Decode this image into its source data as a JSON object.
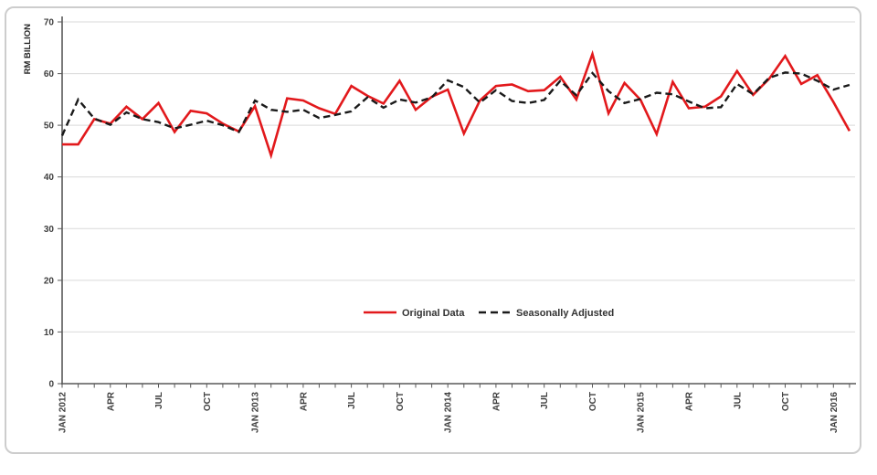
{
  "panel": {
    "background": "#ffffff",
    "border_color": "#cdcdcd"
  },
  "chart_data": {
    "type": "line",
    "title": "",
    "xlabel": "",
    "ylabel": "RM BILLION",
    "ylim": [
      0,
      70
    ],
    "yticks": [
      0,
      10,
      20,
      30,
      40,
      50,
      60,
      70
    ],
    "grid": "horizontal",
    "grid_color": "#d9d9d9",
    "axis_color": "#595959",
    "tick_label_color": "#3f3f3f",
    "x_tick_label_every": 3,
    "x_tick_labels": [
      "JAN 2012",
      "APR",
      "JUL",
      "OCT",
      "JAN 2013",
      "APR",
      "JUL",
      "OCT",
      "JAN 2014",
      "APR",
      "JUL",
      "OCT",
      "JAN 2015",
      "APR",
      "JUL",
      "OCT",
      "JAN 2016"
    ],
    "months": [
      "Jan 2012",
      "Feb 2012",
      "Mar 2012",
      "Apr 2012",
      "May 2012",
      "Jun 2012",
      "Jul 2012",
      "Aug 2012",
      "Sep 2012",
      "Oct 2012",
      "Nov 2012",
      "Dec 2012",
      "Jan 2013",
      "Feb 2013",
      "Mar 2013",
      "Apr 2013",
      "May 2013",
      "Jun 2013",
      "Jul 2013",
      "Aug 2013",
      "Sep 2013",
      "Oct 2013",
      "Nov 2013",
      "Dec 2013",
      "Jan 2014",
      "Feb 2014",
      "Mar 2014",
      "Apr 2014",
      "May 2014",
      "Jun 2014",
      "Jul 2014",
      "Aug 2014",
      "Sep 2014",
      "Oct 2014",
      "Nov 2014",
      "Dec 2014",
      "Jan 2015",
      "Feb 2015",
      "Mar 2015",
      "Apr 2015",
      "May 2015",
      "Jun 2015",
      "Jul 2015",
      "Aug 2015",
      "Sep 2015",
      "Oct 2015",
      "Nov 2015",
      "Dec 2015",
      "Jan 2016",
      "Feb 2016"
    ],
    "series": [
      {
        "name": "Original Data",
        "color": "#e2191c",
        "line_style": "solid",
        "values": [
          46.3,
          46.3,
          51.2,
          50.3,
          53.6,
          51.2,
          54.3,
          48.7,
          52.8,
          52.3,
          50.3,
          48.8,
          53.7,
          44.2,
          55.2,
          54.8,
          53.3,
          52.2,
          57.6,
          55.7,
          54.2,
          58.6,
          53.0,
          55.5,
          56.9,
          48.4,
          54.8,
          57.6,
          57.9,
          56.6,
          56.8,
          59.4,
          55.0,
          63.8,
          52.3,
          58.2,
          54.9,
          48.3,
          58.4,
          53.3,
          53.6,
          55.6,
          60.5,
          55.9,
          59.0,
          63.4,
          58.0,
          59.7,
          54.5,
          48.9
        ]
      },
      {
        "name": "Seasonally Adjusted",
        "color": "#1a1a1a",
        "line_style": "dashed",
        "values": [
          48.0,
          55.0,
          51.3,
          50.1,
          52.5,
          51.2,
          50.6,
          49.4,
          50.1,
          50.9,
          50.0,
          48.7,
          54.8,
          53.0,
          52.6,
          53.0,
          51.4,
          52.0,
          52.7,
          55.4,
          53.4,
          55.0,
          54.4,
          55.4,
          58.7,
          57.4,
          54.4,
          56.8,
          54.7,
          54.3,
          54.9,
          58.6,
          55.8,
          60.1,
          56.6,
          54.3,
          55.1,
          56.3,
          56.0,
          54.6,
          53.3,
          53.5,
          58.0,
          56.0,
          59.2,
          60.2,
          60.0,
          58.6,
          56.9,
          57.8
        ]
      }
    ],
    "legend_position": "inside-bottom-center"
  }
}
